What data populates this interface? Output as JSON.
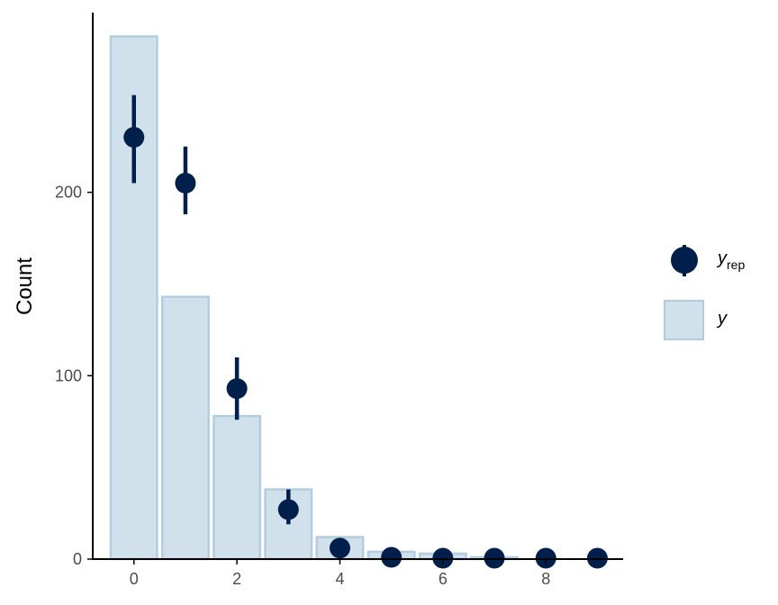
{
  "chart_data": {
    "type": "bar",
    "ylabel": "Count",
    "xlabel": "",
    "xlim": [
      -0.8,
      9.5
    ],
    "ylim": [
      0,
      298
    ],
    "x_ticks": [
      0,
      2,
      4,
      6,
      8
    ],
    "y_ticks": [
      0,
      100,
      200
    ],
    "grid": false,
    "legend_position": "right",
    "colors": {
      "bar_fill": "#d1e1ec",
      "bar_stroke": "#b3cde0",
      "point": "#011f4b",
      "axis": "#000000"
    },
    "series": [
      {
        "name": "y",
        "kind": "bar",
        "x": [
          0,
          1,
          2,
          3,
          4,
          5,
          6,
          7,
          8,
          9
        ],
        "values": [
          285,
          143,
          78,
          38,
          12,
          4,
          3,
          1,
          0,
          0
        ]
      },
      {
        "name": "y_rep",
        "kind": "pointrange",
        "x": [
          0,
          1,
          2,
          3,
          4,
          5,
          6,
          7,
          8,
          9
        ],
        "values": [
          230,
          205,
          93,
          27,
          6,
          1,
          0.5,
          0.5,
          0.5,
          0.5
        ],
        "lower": [
          205,
          188,
          76,
          19,
          3,
          0,
          0,
          0,
          0,
          0
        ],
        "upper": [
          253,
          225,
          110,
          38,
          10,
          3,
          2,
          2,
          2,
          2
        ]
      }
    ],
    "legend": [
      {
        "key": "yrep",
        "main": "y",
        "sub": "rep"
      },
      {
        "key": "y",
        "main": "y",
        "sub": ""
      }
    ]
  }
}
